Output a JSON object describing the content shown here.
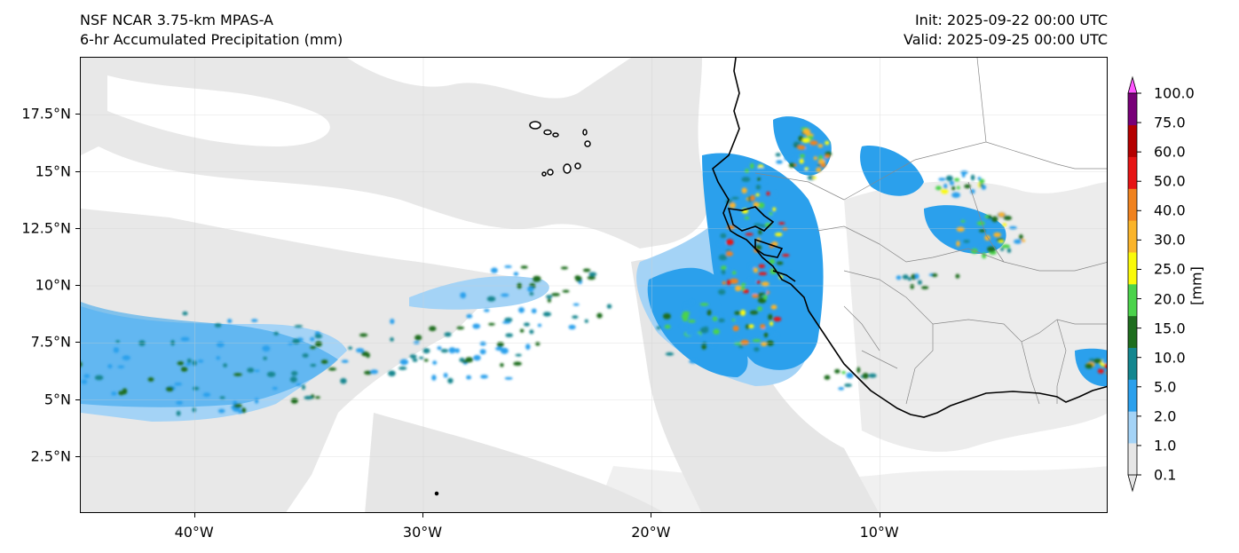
{
  "header": {
    "model": "NSF NCAR 3.75-km MPAS-A",
    "field": "6-hr Accumulated Precipitation (mm)",
    "init": "Init: 2025-09-22 00:00 UTC",
    "valid": "Valid: 2025-09-25 00:00 UTC"
  },
  "map": {
    "extent": {
      "lon_min": -45,
      "lon_max": 0,
      "lat_min": 0,
      "lat_max": 20
    },
    "grid": true,
    "lat_ticks": [
      {
        "value": 2.5,
        "label": "2.5°N"
      },
      {
        "value": 5,
        "label": "5°N"
      },
      {
        "value": 7.5,
        "label": "7.5°N"
      },
      {
        "value": 10,
        "label": "10°N"
      },
      {
        "value": 12.5,
        "label": "12.5°N"
      },
      {
        "value": 15,
        "label": "15°N"
      },
      {
        "value": 17.5,
        "label": "17.5°N"
      }
    ],
    "lon_ticks": [
      {
        "value": -40,
        "label": "40°W"
      },
      {
        "value": -30,
        "label": "30°W"
      },
      {
        "value": -20,
        "label": "20°W"
      },
      {
        "value": -10,
        "label": "10°W"
      }
    ],
    "features": [
      "coastline",
      "country-borders",
      "cape-verde-islands",
      "precipitation-shading"
    ]
  },
  "colorbar": {
    "title": "[mm]",
    "levels": [
      "0.1",
      "1.0",
      "2.0",
      "5.0",
      "10.0",
      "15.0",
      "20.0",
      "25.0",
      "30.0",
      "40.0",
      "50.0",
      "60.0",
      "75.0",
      "100.0"
    ],
    "colors": [
      "#e6e6e6",
      "#a4d3f6",
      "#2ba0ec",
      "#13868f",
      "#1e6d1e",
      "#4bd34b",
      "#fafa0a",
      "#fab42a",
      "#f0821e",
      "#e61414",
      "#b40000",
      "#780078",
      "#ff55ff"
    ],
    "extend": "both"
  }
}
